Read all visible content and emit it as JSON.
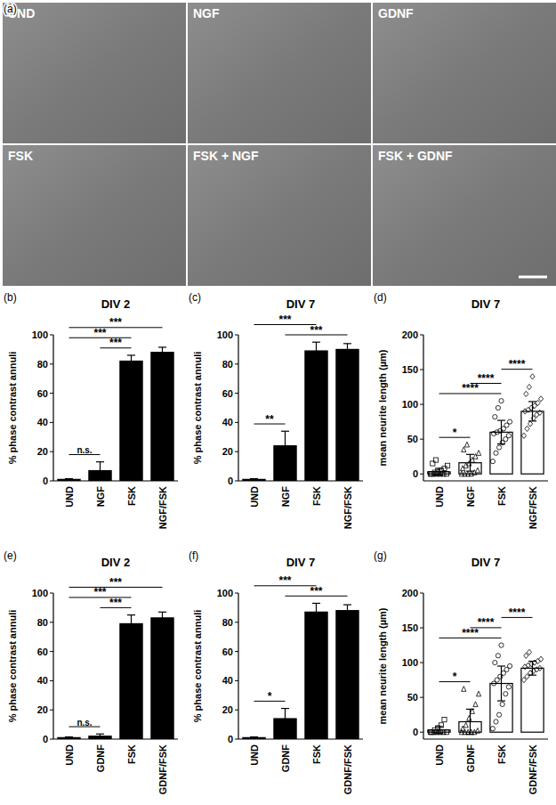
{
  "micrographs": {
    "panel": "(a)",
    "labels": [
      "UND",
      "NGF",
      "GDNF",
      "FSK",
      "FSK + NGF",
      "FSK + GDNF"
    ]
  },
  "chart_data": [
    {
      "type": "bar",
      "panel": "(b)",
      "title": "DIV 2",
      "y_label": "% phase contrast annuli",
      "categories": [
        "UND",
        "NGF",
        "FSK",
        "NGF/FSK"
      ],
      "values": [
        1,
        7,
        82,
        88
      ],
      "errors": [
        0.5,
        6,
        4,
        3.5
      ],
      "color": "#000000",
      "ylim": [
        0,
        100
      ],
      "yticks": [
        0,
        20,
        40,
        60,
        80,
        100
      ],
      "annotations": [
        {
          "from": 0,
          "to": 1,
          "text": "n.s."
        },
        {
          "from": 1,
          "to": 2,
          "text": "***"
        },
        {
          "from": 0,
          "to": 2,
          "text": "***"
        },
        {
          "from": 0,
          "to": 3,
          "text": "***"
        }
      ]
    },
    {
      "type": "bar",
      "panel": "(c)",
      "title": "DIV 7",
      "y_label": "% phase contrast annuli",
      "categories": [
        "UND",
        "NGF",
        "FSK",
        "NGF/FSK"
      ],
      "values": [
        1,
        24,
        89,
        90
      ],
      "errors": [
        0.5,
        10,
        6,
        4
      ],
      "color": "#000000",
      "ylim": [
        0,
        100
      ],
      "yticks": [
        0,
        20,
        40,
        60,
        80,
        100
      ],
      "annotations": [
        {
          "from": 0,
          "to": 1,
          "text": "**"
        },
        {
          "from": 1,
          "to": 3,
          "text": "***"
        },
        {
          "from": 0,
          "to": 2,
          "text": "***"
        }
      ]
    },
    {
      "type": "bar",
      "panel": "(d)",
      "title": "DIV 7",
      "y_label": "mean neurite length (µm)",
      "categories": [
        "UND",
        "NGF",
        "FSK",
        "NGF/FSK"
      ],
      "values": [
        3,
        16,
        60,
        90
      ],
      "errors": [
        5,
        12,
        17,
        14
      ],
      "points": [
        [
          0,
          0,
          0,
          0,
          0,
          0,
          0,
          2,
          3,
          5,
          8,
          12,
          15,
          20
        ],
        [
          0,
          0,
          0,
          0,
          2,
          5,
          8,
          12,
          15,
          20,
          25,
          30,
          35,
          42
        ],
        [
          18,
          30,
          38,
          45,
          50,
          55,
          58,
          60,
          62,
          65,
          70,
          75,
          82,
          95,
          105
        ],
        [
          55,
          65,
          72,
          80,
          85,
          88,
          90,
          92,
          95,
          98,
          102,
          108,
          115,
          125,
          140
        ]
      ],
      "color": "#ffffff",
      "ylim": [
        -10,
        200
      ],
      "yticks": [
        0,
        50,
        100,
        150,
        200
      ],
      "annotations": [
        {
          "from": 0,
          "to": 1,
          "text": "*"
        },
        {
          "from": 0,
          "to": 2,
          "text": "****"
        },
        {
          "from": 1,
          "to": 2,
          "text": "****"
        },
        {
          "from": 2,
          "to": 3,
          "text": "****"
        }
      ]
    },
    {
      "type": "bar",
      "panel": "(e)",
      "title": "DIV 2",
      "y_label": "% phase contrast annuli",
      "categories": [
        "UND",
        "GDNF",
        "FSK",
        "GDNF/FSK"
      ],
      "values": [
        1,
        2,
        79,
        83
      ],
      "errors": [
        0.5,
        1.5,
        6,
        4
      ],
      "color": "#000000",
      "ylim": [
        0,
        100
      ],
      "yticks": [
        0,
        20,
        40,
        60,
        80,
        100
      ],
      "annotations": [
        {
          "from": 0,
          "to": 1,
          "text": "n.s."
        },
        {
          "from": 1,
          "to": 2,
          "text": "***"
        },
        {
          "from": 0,
          "to": 2,
          "text": "***"
        },
        {
          "from": 0,
          "to": 3,
          "text": "***"
        }
      ]
    },
    {
      "type": "bar",
      "panel": "(f)",
      "title": "DIV 7",
      "y_label": "% phase contrast annuli",
      "categories": [
        "UND",
        "GDNF",
        "FSK",
        "GDNF/FSK"
      ],
      "values": [
        1,
        14,
        87,
        88
      ],
      "errors": [
        0.5,
        7,
        6,
        4
      ],
      "color": "#000000",
      "ylim": [
        0,
        100
      ],
      "yticks": [
        0,
        20,
        40,
        60,
        80,
        100
      ],
      "annotations": [
        {
          "from": 0,
          "to": 1,
          "text": "*"
        },
        {
          "from": 1,
          "to": 3,
          "text": "***"
        },
        {
          "from": 0,
          "to": 2,
          "text": "***"
        }
      ]
    },
    {
      "type": "bar",
      "panel": "(g)",
      "title": "DIV 7",
      "y_label": "mean neurite length (µm)",
      "categories": [
        "UND",
        "GDNF",
        "FSK",
        "GDNF/FSK"
      ],
      "values": [
        3,
        15,
        70,
        92
      ],
      "errors": [
        5,
        18,
        25,
        10
      ],
      "points": [
        [
          0,
          0,
          0,
          0,
          0,
          0,
          0,
          3,
          6,
          10,
          18
        ],
        [
          0,
          0,
          0,
          0,
          0,
          2,
          5,
          10,
          20,
          30,
          40,
          55,
          62
        ],
        [
          5,
          15,
          25,
          40,
          55,
          65,
          70,
          75,
          80,
          85,
          90,
          95,
          100,
          110,
          125
        ],
        [
          75,
          80,
          85,
          88,
          90,
          92,
          94,
          96,
          98,
          100,
          102,
          105,
          110,
          115
        ]
      ],
      "color": "#ffffff",
      "ylim": [
        -10,
        200
      ],
      "yticks": [
        0,
        50,
        100,
        150,
        200
      ],
      "annotations": [
        {
          "from": 0,
          "to": 1,
          "text": "*"
        },
        {
          "from": 0,
          "to": 2,
          "text": "****"
        },
        {
          "from": 1,
          "to": 2,
          "text": "****"
        },
        {
          "from": 2,
          "to": 3,
          "text": "****"
        }
      ]
    }
  ]
}
